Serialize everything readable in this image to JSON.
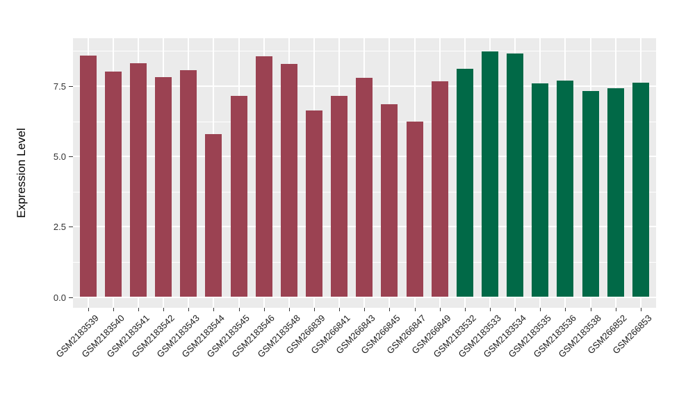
{
  "figure": {
    "background": "#FFFFFF"
  },
  "chart_data": {
    "type": "bar",
    "title": "",
    "xlabel": "",
    "ylabel": "Expression Level",
    "categories": [
      "GSM2183539",
      "GSM2183540",
      "GSM2183541",
      "GSM2183542",
      "GSM2183543",
      "GSM2183544",
      "GSM2183545",
      "GSM2183546",
      "GSM2183548",
      "GSM266839",
      "GSM266841",
      "GSM266843",
      "GSM266845",
      "GSM266847",
      "GSM266849",
      "GSM2183532",
      "GSM2183533",
      "GSM2183534",
      "GSM2183535",
      "GSM2183536",
      "GSM2183538",
      "GSM266852",
      "GSM266853"
    ],
    "values": [
      8.58,
      8.01,
      8.32,
      7.83,
      8.07,
      5.8,
      7.16,
      8.55,
      8.28,
      6.64,
      7.15,
      7.79,
      6.85,
      6.24,
      7.66,
      8.12,
      8.74,
      8.66,
      7.6,
      7.7,
      7.33,
      7.42,
      7.62
    ],
    "color_groups": [
      {
        "color": "#9B4252",
        "count": 15
      },
      {
        "color": "#016947",
        "count": 8
      }
    ],
    "ytick_labels": [
      "0.0",
      "2.5",
      "5.0",
      "7.5"
    ],
    "ytick_values": [
      0,
      2.5,
      5.0,
      7.5
    ],
    "minor_tick_values": [
      1.25,
      3.75,
      6.25,
      8.75
    ],
    "ylim": [
      0,
      9.2
    ],
    "x_label_rotation": 45,
    "grid": true,
    "legend": "none",
    "panel_bg": "#EBEBEB",
    "grid_color": "#FFFFFF"
  }
}
